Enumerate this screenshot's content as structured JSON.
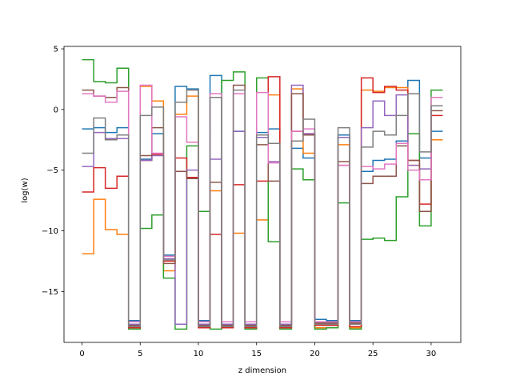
{
  "chart_data": {
    "type": "line",
    "step": "post",
    "title": "",
    "xlabel": "z dimension",
    "ylabel": "log(w)",
    "xlim": [
      -1.55,
      32.55
    ],
    "ylim": [
      -19.2,
      5.2
    ],
    "xticks": [
      0,
      5,
      10,
      15,
      20,
      25,
      30
    ],
    "yticks": [
      5,
      0,
      -5,
      -10,
      -15
    ],
    "grid": false,
    "legend": "none",
    "x": [
      0,
      1,
      2,
      3,
      4,
      5,
      6,
      7,
      8,
      9,
      10,
      11,
      12,
      13,
      14,
      15,
      16,
      17,
      18,
      19,
      20,
      21,
      22,
      23,
      24,
      25,
      26,
      27,
      28,
      29,
      30,
      31
    ],
    "series": [
      {
        "color": "#1f77b4",
        "values": [
          -1.6,
          -1.5,
          -1.9,
          -1.5,
          -17.4,
          -4.1,
          -2.0,
          -12.0,
          1.9,
          1.7,
          -17.4,
          2.8,
          -17.5,
          -1.8,
          -17.5,
          -1.9,
          -1.6,
          -17.5,
          -3.2,
          -4.0,
          -17.3,
          -17.4,
          -2.1,
          -17.4,
          -5.1,
          -4.2,
          -4.1,
          -2.6,
          2.4,
          -4.0,
          -1.8,
          -1.8
        ]
      },
      {
        "color": "#ff7f0e",
        "values": [
          -11.9,
          -7.4,
          -9.9,
          -10.3,
          -18.0,
          1.9,
          0.7,
          -13.3,
          -0.4,
          1.1,
          -18.0,
          -6.7,
          -18.0,
          -10.2,
          -18.0,
          -9.1,
          1.2,
          -18.0,
          1.7,
          -3.6,
          -18.0,
          -18.0,
          -2.9,
          -18.0,
          1.6,
          1.5,
          1.8,
          1.8,
          -4.6,
          -8.4,
          -2.5,
          -2.5
        ]
      },
      {
        "color": "#2ca02c",
        "values": [
          4.1,
          2.3,
          2.2,
          3.4,
          -18.1,
          -9.8,
          -8.7,
          -13.9,
          -18.1,
          -3.0,
          -8.4,
          -18.1,
          2.4,
          3.1,
          -18.1,
          2.6,
          -10.9,
          -18.1,
          -4.9,
          -5.8,
          -18.1,
          -18.0,
          -7.7,
          -18.1,
          -10.7,
          -10.6,
          -10.8,
          -7.2,
          -2.0,
          -9.6,
          1.6,
          1.6
        ]
      },
      {
        "color": "#d62728",
        "values": [
          -6.8,
          -4.8,
          -6.5,
          -5.5,
          -18.0,
          -4.2,
          -3.7,
          -12.5,
          -4.0,
          -5.6,
          -18.0,
          -10.3,
          -18.0,
          -6.2,
          -18.0,
          -5.9,
          2.7,
          -18.0,
          -1.8,
          -2.0,
          -17.8,
          -17.8,
          -4.6,
          -17.9,
          2.6,
          1.4,
          1.9,
          1.6,
          -4.2,
          -7.8,
          -0.5,
          -0.5
        ]
      },
      {
        "color": "#9467bd",
        "values": [
          -4.7,
          -1.9,
          -2.4,
          -2.4,
          -17.7,
          -4.2,
          -3.8,
          -12.3,
          -17.7,
          -5.0,
          -17.7,
          -4.1,
          -17.7,
          -1.8,
          -17.7,
          -2.3,
          -4.3,
          -17.7,
          2.0,
          -2.0,
          -17.7,
          -17.7,
          -2.3,
          -17.7,
          -1.5,
          0.7,
          -0.5,
          1.2,
          -4.6,
          -4.9,
          0.3,
          0.3
        ]
      },
      {
        "color": "#8c564b",
        "values": [
          1.6,
          1.1,
          1.0,
          1.8,
          -17.8,
          -3.8,
          -1.5,
          -12.7,
          -5.1,
          -5.7,
          -17.8,
          -6.0,
          -17.8,
          2.0,
          -17.8,
          -2.9,
          -5.9,
          -17.8,
          1.3,
          -2.1,
          -17.6,
          -17.6,
          -4.3,
          -17.6,
          -6.1,
          -5.5,
          -5.5,
          -3.0,
          -4.2,
          -8.4,
          -0.1,
          -0.1
        ]
      },
      {
        "color": "#e377c2",
        "values": [
          1.3,
          1.1,
          0.6,
          1.5,
          -17.5,
          2.0,
          -3.6,
          -12.1,
          -0.6,
          -2.7,
          -17.5,
          1.3,
          -17.5,
          1.3,
          -17.5,
          1.4,
          -4.4,
          -17.5,
          -1.8,
          -1.6,
          -17.5,
          -17.5,
          -4.6,
          -17.5,
          -4.7,
          -4.9,
          -4.5,
          -2.8,
          -5.0,
          -5.8,
          1.0,
          1.0
        ]
      },
      {
        "color": "#7f7f7f",
        "values": [
          -3.6,
          -0.7,
          -2.5,
          -2.1,
          -17.9,
          -0.5,
          0.2,
          -12.4,
          0.6,
          1.6,
          -17.9,
          1.0,
          -17.9,
          1.6,
          -17.9,
          -2.1,
          -2.8,
          -17.9,
          -2.6,
          -0.8,
          -17.7,
          -17.7,
          -1.5,
          -17.7,
          -3.1,
          -1.8,
          -2.1,
          -0.5,
          1.3,
          -3.5,
          0.3,
          0.3
        ]
      }
    ]
  }
}
